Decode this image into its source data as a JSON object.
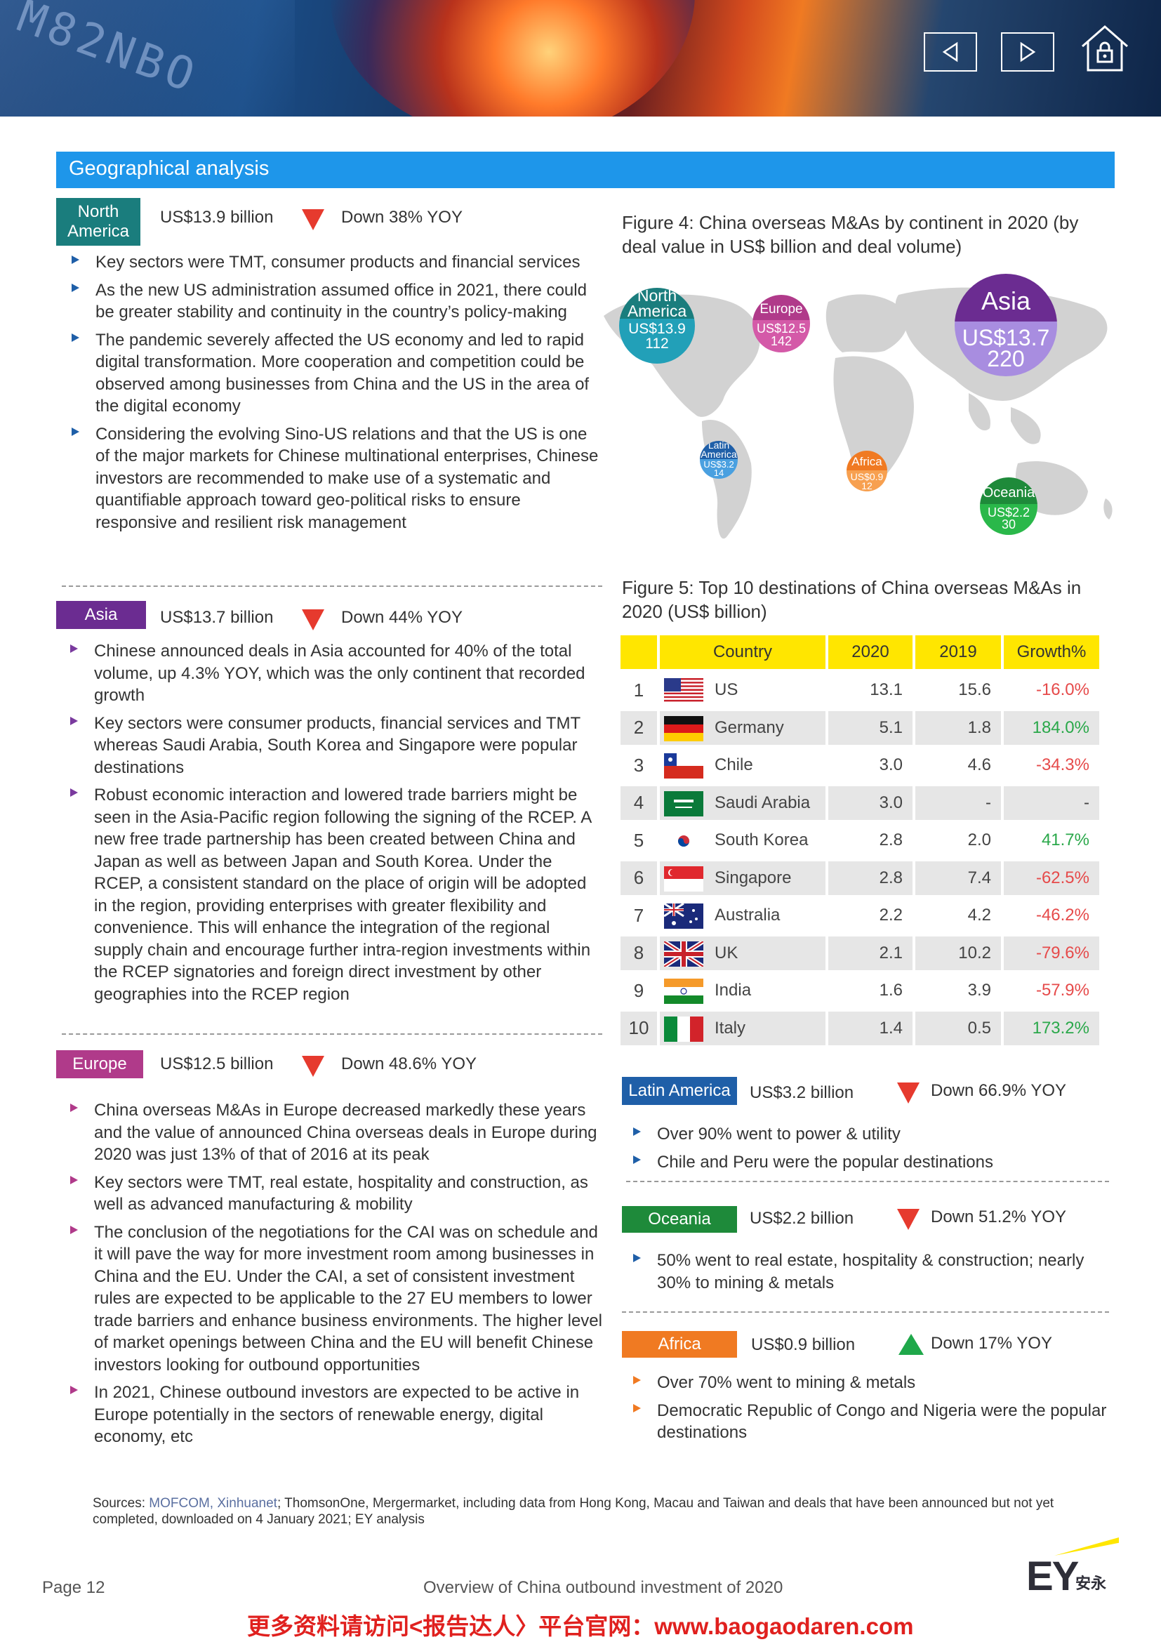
{
  "header": {
    "banner_code": "M82NBO",
    "prev_icon": "chevron-left-icon",
    "next_icon": "chevron-right-icon",
    "home_icon": "home-lock-icon"
  },
  "section": {
    "title": "Geographical analysis"
  },
  "north_america": {
    "label_line1": "North",
    "label_line2": "America",
    "value": "US$13.9 billion",
    "change": "Down 38% YOY",
    "color": "#1a7d7d",
    "bullets": [
      "Key sectors were TMT, consumer products and financial services",
      "As the new US administration assumed office in 2021, there could be greater stability and continuity in the country’s policy-making",
      "The pandemic severely affected the US economy and led to rapid digital transformation. More cooperation and competition could be observed among businesses from China and the US in the area of the digital economy",
      "Considering the evolving Sino-US relations and that the US is one of the major markets for Chinese multinational enterprises, Chinese investors are recommended to make use of a systematic and quantifiable approach toward geo-political risks to ensure responsive and resilient risk management"
    ]
  },
  "asia": {
    "label": "Asia",
    "value": "US$13.7 billion",
    "change": "Down 44% YOY",
    "color": "#6b2c91",
    "bullets": [
      "Chinese announced deals in Asia accounted for 40% of the total volume, up 4.3% YOY, which was the only continent that recorded growth",
      "Key sectors were consumer products, financial services and TMT whereas Saudi Arabia, South Korea and Singapore were popular destinations",
      "Robust economic interaction and lowered trade barriers might be seen in the Asia-Pacific region following the signing of the RCEP. A new free trade partnership has been created between China and Japan as well as between Japan and South Korea. Under the RCEP, a consistent standard on the place of origin will be adopted in the region, providing enterprises with greater flexibility and convenience. This will enhance the integration of the regional supply chain and encourage further intra-region investments within the RCEP signatories and foreign direct investment by other geographies into the RCEP region"
    ]
  },
  "europe": {
    "label": "Europe",
    "value": "US$12.5 billion",
    "change": "Down 48.6% YOY",
    "color": "#b03a8a",
    "bullets": [
      "China overseas M&As in Europe decreased markedly these years and the value of announced China overseas deals in Europe during 2020 was just 13% of that of 2016 at its peak",
      "Key sectors were TMT, real estate, hospitality and construction, as well as advanced manufacturing & mobility",
      "The conclusion of the negotiations for the CAI was on schedule and it will pave the way for more investment room among businesses in China and the EU. Under the CAI, a set of consistent investment rules are expected to be applicable to the 27 EU members to lower trade barriers and enhance business environments. The higher level of market openings between China and the EU will benefit Chinese investors looking for outbound opportunities",
      "In 2021, Chinese outbound investors are expected to be active in Europe potentially in the sectors of renewable energy, digital economy, etc"
    ]
  },
  "figure4": {
    "title": "Figure 4: China overseas M&As by continent in 2020 (by deal value in US$ billion and deal volume)",
    "bubbles": [
      {
        "name_line1": "North",
        "name_line2": "America",
        "value": "US$13.9",
        "count": "112",
        "top_color": "#1a7d7d",
        "bottom_color": "#22a0b8"
      },
      {
        "name_line1": "Europe",
        "name_line2": "",
        "value": "US$12.5",
        "count": "142",
        "top_color": "#b03a8a",
        "bottom_color": "#d45aa8"
      },
      {
        "name_line1": "Asia",
        "name_line2": "",
        "value": "US$13.7",
        "count": "220",
        "top_color": "#6b2c91",
        "bottom_color": "#a88de0"
      },
      {
        "name_line1": "Latin",
        "name_line2": "America",
        "value": "US$3.2",
        "count": "14",
        "top_color": "#1f5fa8",
        "bottom_color": "#4aa0e0"
      },
      {
        "name_line1": "Africa",
        "name_line2": "",
        "value": "US$0.9",
        "count": "12",
        "top_color": "#f07a22",
        "bottom_color": "#f7a050"
      },
      {
        "name_line1": "Oceania",
        "name_line2": "",
        "value": "US$2.2",
        "count": "30",
        "top_color": "#1e8a3a",
        "bottom_color": "#2ab84a"
      }
    ]
  },
  "figure5": {
    "title": "Figure 5: Top 10 destinations of China overseas M&As in 2020 (US$ billion)",
    "columns": [
      "Country",
      "2020",
      "2019",
      "Growth%"
    ],
    "rows": [
      {
        "rank": "1",
        "country": "US",
        "flag": "us-flag",
        "v2020": "13.1",
        "v2019": "15.6",
        "growth": "-16.0%",
        "trend": "neg"
      },
      {
        "rank": "2",
        "country": "Germany",
        "flag": "germany-flag",
        "v2020": "5.1",
        "v2019": "1.8",
        "growth": "184.0%",
        "trend": "pos"
      },
      {
        "rank": "3",
        "country": "Chile",
        "flag": "chile-flag",
        "v2020": "3.0",
        "v2019": "4.6",
        "growth": "-34.3%",
        "trend": "neg"
      },
      {
        "rank": "4",
        "country": "Saudi Arabia",
        "flag": "saudi-arabia-flag",
        "v2020": "3.0",
        "v2019": "-",
        "growth": "-",
        "trend": "none"
      },
      {
        "rank": "5",
        "country": "South Korea",
        "flag": "south-korea-flag",
        "v2020": "2.8",
        "v2019": "2.0",
        "growth": "41.7%",
        "trend": "pos"
      },
      {
        "rank": "6",
        "country": "Singapore",
        "flag": "singapore-flag",
        "v2020": "2.8",
        "v2019": "7.4",
        "growth": "-62.5%",
        "trend": "neg"
      },
      {
        "rank": "7",
        "country": "Australia",
        "flag": "australia-flag",
        "v2020": "2.2",
        "v2019": "4.2",
        "growth": "-46.2%",
        "trend": "neg"
      },
      {
        "rank": "8",
        "country": "UK",
        "flag": "uk-flag",
        "v2020": "2.1",
        "v2019": "10.2",
        "growth": "-79.6%",
        "trend": "neg"
      },
      {
        "rank": "9",
        "country": "India",
        "flag": "india-flag",
        "v2020": "1.6",
        "v2019": "3.9",
        "growth": "-57.9%",
        "trend": "neg"
      },
      {
        "rank": "10",
        "country": "Italy",
        "flag": "italy-flag",
        "v2020": "1.4",
        "v2019": "0.5",
        "growth": "173.2%",
        "trend": "pos"
      }
    ]
  },
  "latin_america": {
    "label": "Latin America",
    "value": "US$3.2 billion",
    "change": "Down 66.9% YOY",
    "color": "#1f5fa8",
    "bullets": [
      "Over 90% went to power & utility",
      "Chile and Peru were the popular destinations"
    ]
  },
  "oceania": {
    "label": "Oceania",
    "value": "US$2.2 billion",
    "change": "Down 51.2% YOY",
    "color": "#1e8a3a",
    "bullets": [
      "50% went to real estate, hospitality & construction; nearly 30% to mining & metals"
    ]
  },
  "africa": {
    "label": "Africa",
    "value": "US$0.9 billion",
    "change": "Down 17% YOY",
    "color": "#f07a22",
    "bullets": [
      "Over 70% went to mining & metals",
      "Democratic Republic of Congo and Nigeria were the popular destinations"
    ]
  },
  "sources": {
    "prefix": "Sources: ",
    "highlight": "MOFCOM, Xinhuanet",
    "rest": "; ThomsonOne, Mergermarket, including data from Hong Kong, Macau and Taiwan and deals that have been announced but not yet completed, downloaded on 4 January 2021; EY analysis"
  },
  "footer": {
    "page": "Page 12",
    "title": "Overview of China outbound investment of 2020",
    "logo_letters": "EY",
    "logo_cn": "安永",
    "watermark": "更多资料请访问<报告达人〉平台官网：www.baogaodaren.com"
  }
}
